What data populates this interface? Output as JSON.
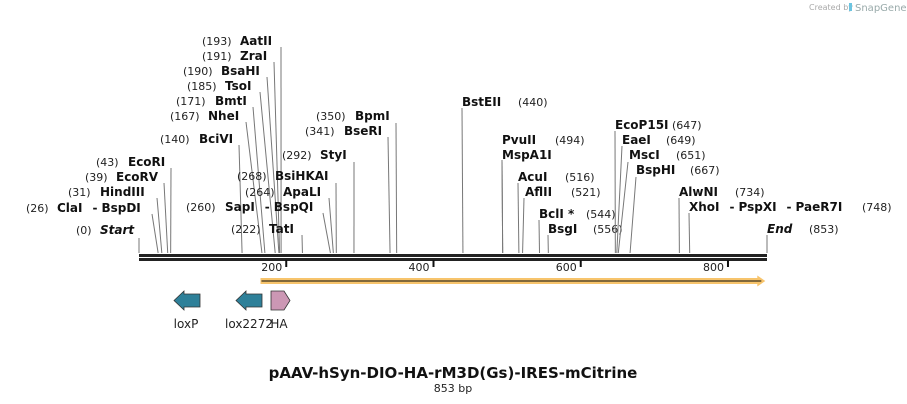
{
  "credit": {
    "prefix": "Created by",
    "brand": "SnapGene"
  },
  "map": {
    "title": "pAAV-hSyn-DIO-HA-rM3D(Gs)-IRES-mCitrine",
    "length_label": "853 bp",
    "length_bp": 853,
    "ticks": [
      "200",
      "400",
      "600",
      "800"
    ],
    "tick_values": [
      200,
      400,
      600,
      800
    ]
  },
  "enzymes": [
    {
      "names": [
        "Start"
      ],
      "position": 0,
      "pos_label": "(0)",
      "italic": true
    },
    {
      "names": [
        "ClaI",
        "BspDI"
      ],
      "position": 26,
      "pos_label": "(26)"
    },
    {
      "names": [
        "HindIII"
      ],
      "position": 31,
      "pos_label": "(31)"
    },
    {
      "names": [
        "EcoRV"
      ],
      "position": 39,
      "pos_label": "(39)"
    },
    {
      "names": [
        "EcoRI"
      ],
      "position": 43,
      "pos_label": "(43)"
    },
    {
      "names": [
        "BciVI"
      ],
      "position": 140,
      "pos_label": "(140)"
    },
    {
      "names": [
        "NheI"
      ],
      "position": 167,
      "pos_label": "(167)"
    },
    {
      "names": [
        "BmtI"
      ],
      "position": 171,
      "pos_label": "(171)"
    },
    {
      "names": [
        "TsoI"
      ],
      "position": 185,
      "pos_label": "(185)"
    },
    {
      "names": [
        "BsaHI"
      ],
      "position": 190,
      "pos_label": "(190)"
    },
    {
      "names": [
        "ZraI"
      ],
      "position": 191,
      "pos_label": "(191)"
    },
    {
      "names": [
        "AatII"
      ],
      "position": 193,
      "pos_label": "(193)"
    },
    {
      "names": [
        "TatI"
      ],
      "position": 222,
      "pos_label": "(222)"
    },
    {
      "names": [
        "SapI",
        "BspQI"
      ],
      "position": 260,
      "pos_label": "(260)"
    },
    {
      "names": [
        "ApaLI"
      ],
      "position": 264,
      "pos_label": "(264)"
    },
    {
      "names": [
        "BsiHKAI"
      ],
      "position": 268,
      "pos_label": "(268)"
    },
    {
      "names": [
        "StyI"
      ],
      "position": 292,
      "pos_label": "(292)"
    },
    {
      "names": [
        "BseRI"
      ],
      "position": 341,
      "pos_label": "(341)"
    },
    {
      "names": [
        "BpmI"
      ],
      "position": 350,
      "pos_label": "(350)"
    },
    {
      "names": [
        "BstEII"
      ],
      "position": 440,
      "pos_label": "(440)"
    },
    {
      "names": [
        "PvuII"
      ],
      "position": 494,
      "pos_label": "(494)"
    },
    {
      "names": [
        "MspA1I"
      ],
      "position": 494,
      "pos_label": ""
    },
    {
      "names": [
        "AcuI"
      ],
      "position": 516,
      "pos_label": "(516)"
    },
    {
      "names": [
        "AflII"
      ],
      "position": 521,
      "pos_label": "(521)"
    },
    {
      "names": [
        "BclI *"
      ],
      "position": 544,
      "pos_label": "(544)"
    },
    {
      "names": [
        "BsgI"
      ],
      "position": 556,
      "pos_label": "(556)"
    },
    {
      "names": [
        "EcoP15I"
      ],
      "position": 647,
      "pos_label": "(647)"
    },
    {
      "names": [
        "EaeI"
      ],
      "position": 649,
      "pos_label": "(649)"
    },
    {
      "names": [
        "MscI"
      ],
      "position": 651,
      "pos_label": "(651)"
    },
    {
      "names": [
        "BspHI"
      ],
      "position": 667,
      "pos_label": "(667)"
    },
    {
      "names": [
        "AlwNI"
      ],
      "position": 734,
      "pos_label": "(734)"
    },
    {
      "names": [
        "XhoI",
        "PspXI",
        "PaeR7I"
      ],
      "position": 748,
      "pos_label": "(748)"
    },
    {
      "names": [
        "End"
      ],
      "position": 853,
      "pos_label": "(853)",
      "italic": true
    }
  ],
  "features": [
    {
      "name": "loxP",
      "direction": "reverse",
      "color": "#2e8099"
    },
    {
      "name": "lox2272",
      "direction": "reverse",
      "color": "#2e8099"
    },
    {
      "name": "HA",
      "direction": "forward",
      "color": "#cc97b4"
    }
  ],
  "orf": {
    "direction": "forward",
    "color": "#f7c46c",
    "start_bp": 165,
    "end_bp": 848
  }
}
